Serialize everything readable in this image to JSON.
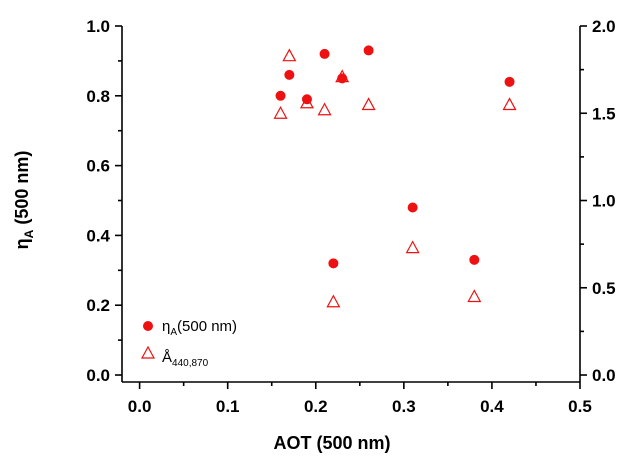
{
  "chart_data": {
    "type": "scatter",
    "xlabel": "AOT (500 nm)",
    "ylabel": "ηA (500 nm)",
    "y2label": "",
    "xlim": [
      -0.02,
      0.5
    ],
    "ylim": [
      -0.02,
      1.0
    ],
    "y2lim": [
      -0.04,
      2.0
    ],
    "x_ticks": [
      0.0,
      0.1,
      0.2,
      0.3,
      0.4,
      0.5
    ],
    "x_tick_labels": [
      "0.0",
      "0.1",
      "0.2",
      "0.3",
      "0.4",
      "0.5"
    ],
    "y_ticks": [
      0.0,
      0.2,
      0.4,
      0.6,
      0.8,
      1.0
    ],
    "y_tick_labels": [
      "0.0",
      "0.2",
      "0.4",
      "0.6",
      "0.8",
      "1.0"
    ],
    "y2_ticks": [
      0.0,
      0.5,
      1.0,
      1.5,
      2.0
    ],
    "y2_tick_labels": [
      "0.0",
      "0.5",
      "1.0",
      "1.5",
      "2.0"
    ],
    "grid": false,
    "legend_position": "bottom-left",
    "series": [
      {
        "name": "ηA(500 nm)",
        "marker": "filled-circle",
        "color": "#ee1111",
        "axis": "left",
        "x": [
          0.16,
          0.17,
          0.19,
          0.21,
          0.22,
          0.23,
          0.26,
          0.31,
          0.38,
          0.42
        ],
        "y": [
          0.8,
          0.86,
          0.79,
          0.92,
          0.32,
          0.85,
          0.93,
          0.48,
          0.33,
          0.84
        ]
      },
      {
        "name": "Å440,870",
        "marker": "open-triangle",
        "color": "#ee1111",
        "axis": "right",
        "x": [
          0.16,
          0.17,
          0.19,
          0.21,
          0.22,
          0.23,
          0.26,
          0.31,
          0.38,
          0.42
        ],
        "y": [
          1.5,
          1.83,
          1.56,
          1.52,
          0.42,
          1.71,
          1.55,
          0.73,
          0.45,
          1.55
        ]
      }
    ]
  }
}
